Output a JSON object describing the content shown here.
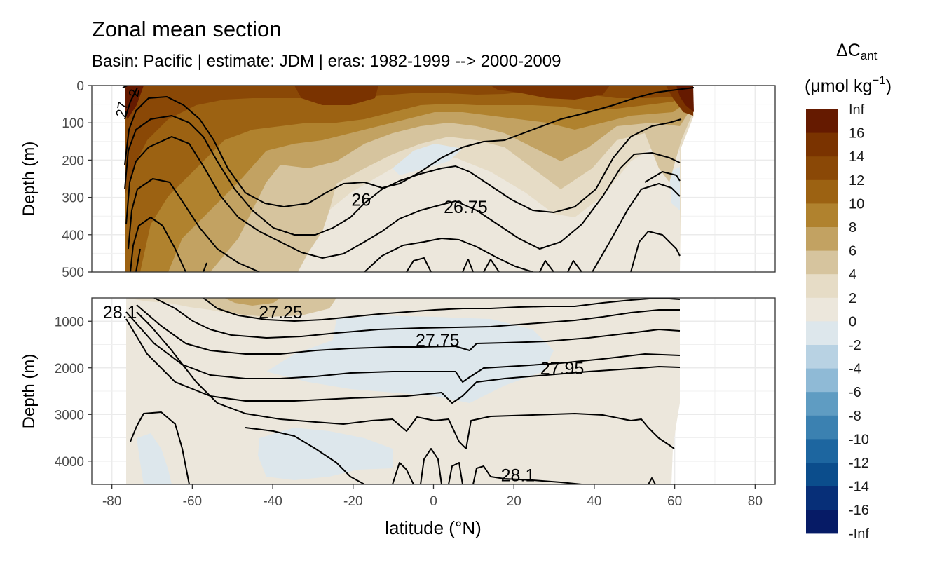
{
  "chart_data": {
    "type": "heatmap",
    "title": "Zonal mean section",
    "subtitle": "Basin: Pacific | estimate: JDM  | eras: 1982-1999 --> 2000-2009",
    "xlabel": "latitude (°N)",
    "x_ticks": [
      "-80",
      "-60",
      "-40",
      "-20",
      "0",
      "20",
      "40",
      "60",
      "80"
    ],
    "x_tick_values": [
      -80,
      -60,
      -40,
      -20,
      0,
      20,
      40,
      60,
      80
    ],
    "xlim": [
      -85,
      85
    ],
    "panels": [
      {
        "ylabel": "Depth (m)",
        "ylim": [
          0,
          500
        ],
        "y_ticks": [
          "0",
          "100",
          "200",
          "300",
          "400",
          "500"
        ],
        "y_tick_values": [
          0,
          100,
          200,
          300,
          400,
          500
        ],
        "contour_labels": [
          {
            "text": "26",
            "lat": -18,
            "depth": 305
          },
          {
            "text": "26.75",
            "lat": 8,
            "depth": 325
          }
        ]
      },
      {
        "ylabel": "Depth (m)",
        "ylim": [
          500,
          4500
        ],
        "y_ticks": [
          "1000",
          "2000",
          "3000",
          "4000"
        ],
        "y_tick_values": [
          1000,
          2000,
          3000,
          4000
        ],
        "contour_labels": [
          {
            "text": "28.1",
            "lat": -78,
            "depth": 800
          },
          {
            "text": "27.25",
            "lat": -38,
            "depth": 800
          },
          {
            "text": "27.75",
            "lat": 1,
            "depth": 1400
          },
          {
            "text": "27.95",
            "lat": 32,
            "depth": 2000
          },
          {
            "text": "28.1",
            "lat": 21,
            "depth": 4300
          }
        ]
      }
    ],
    "legend": {
      "title_main": "ΔC",
      "title_sub": "ant",
      "units": "(μmol kg",
      "units_sup": "−1",
      "units_close": ")",
      "labels": [
        "Inf",
        "16",
        "14",
        "12",
        "10",
        "8",
        "6",
        "4",
        "2",
        "0",
        "-2",
        "-4",
        "-6",
        "-8",
        "-10",
        "-12",
        "-14",
        "-16",
        "-Inf"
      ],
      "colors": [
        "#651a00",
        "#7a3300",
        "#8a4806",
        "#9c6212",
        "#b0822e",
        "#c2a262",
        "#d6c49e",
        "#e6dcc6",
        "#ece7dc",
        "#dde7ec",
        "#b8d2e3",
        "#8fbad6",
        "#5f9cc2",
        "#3b81b1",
        "#1d66a0",
        "#0b4d8c",
        "#072f78",
        "#061b66"
      ]
    }
  }
}
